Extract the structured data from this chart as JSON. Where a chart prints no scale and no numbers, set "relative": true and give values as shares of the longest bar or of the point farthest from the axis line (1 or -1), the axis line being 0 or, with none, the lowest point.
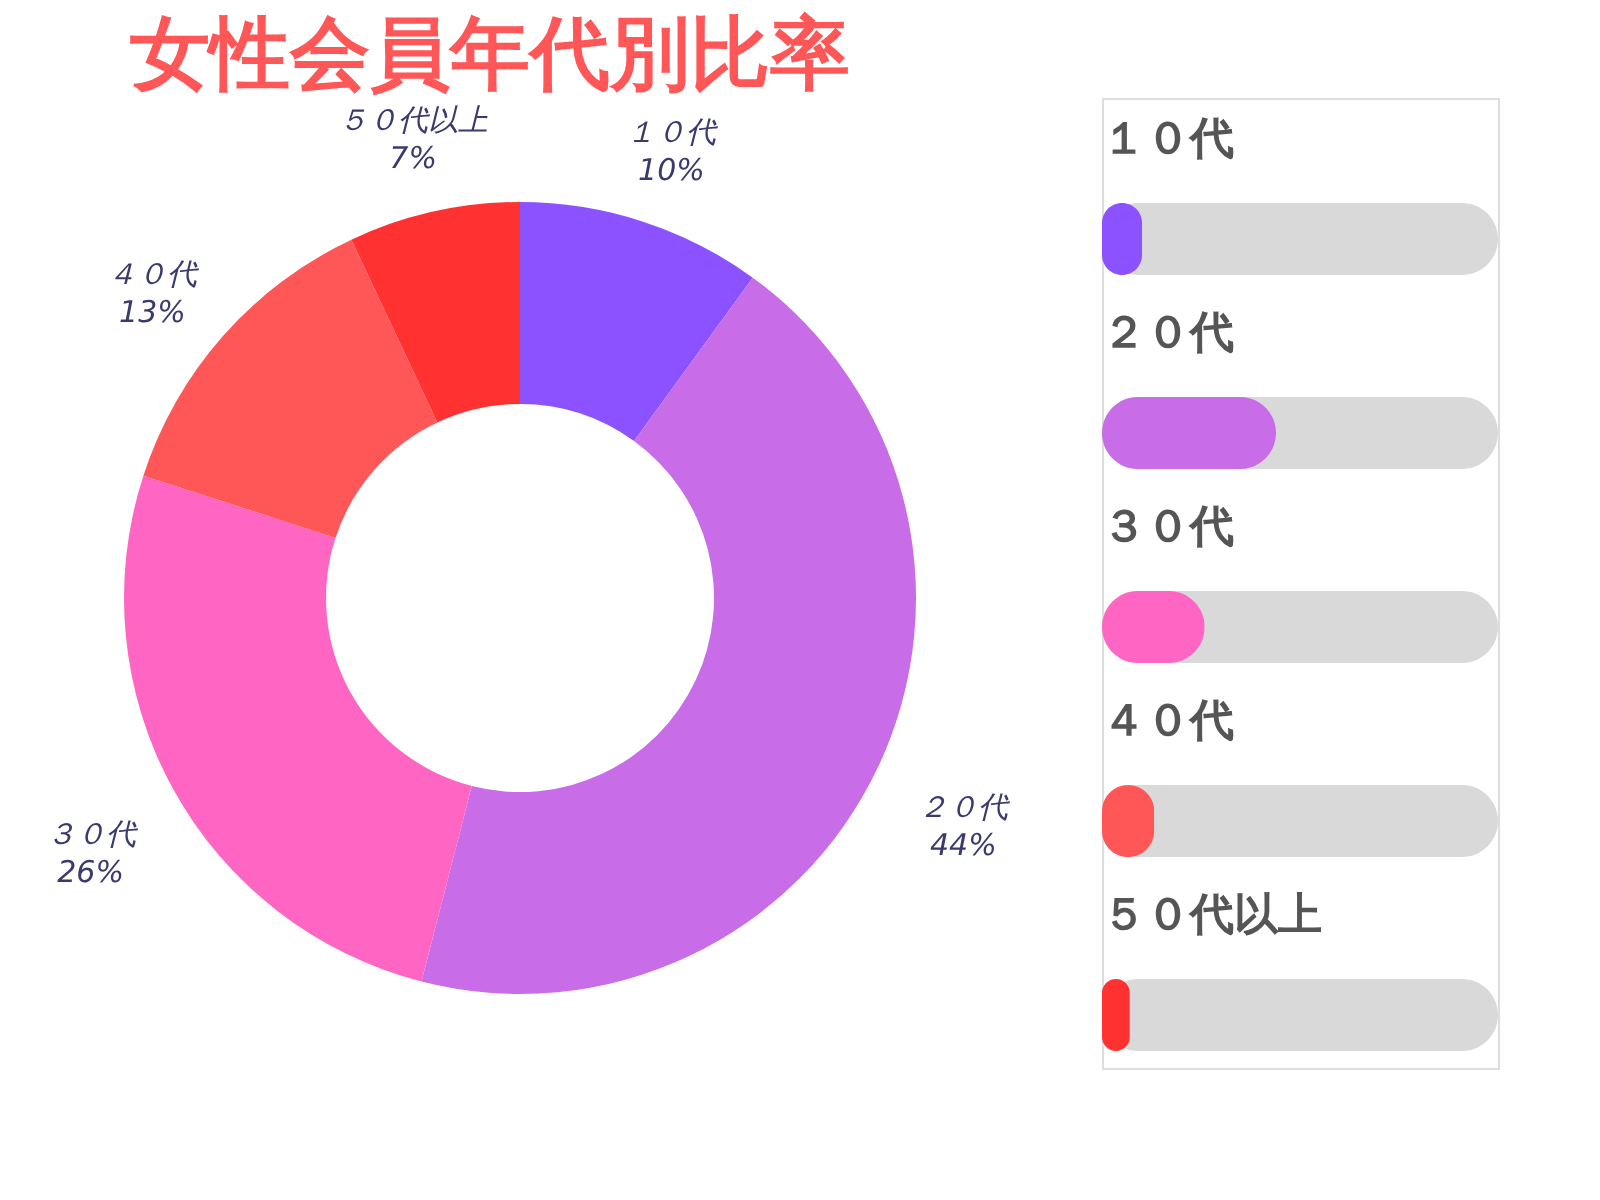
{
  "chart_data": [
    {
      "type": "donut",
      "title": "女性会員年代別比率",
      "categories": [
        "１０代",
        "２０代",
        "３０代",
        "４０代",
        "５０代以上"
      ],
      "values": [
        10,
        44,
        26,
        13,
        7
      ],
      "value_labels": [
        "10%",
        "44%",
        "26%",
        "13%",
        "7%"
      ],
      "colors": [
        "#8c52ff",
        "#c86ce8",
        "#ff66c4",
        "#ff5757",
        "#ff3131"
      ],
      "legend": false
    },
    {
      "type": "bar",
      "orientation": "horizontal",
      "relative": true,
      "categories": [
        "１０代",
        "２０代",
        "３０代",
        "４０代",
        "５０代以上"
      ],
      "values": [
        0.23,
        1,
        0.59,
        0.3,
        0.16
      ],
      "colors": [
        "#8c52ff",
        "#c86ce8",
        "#ff66c4",
        "#ff5757",
        "#ff3131"
      ],
      "tick_labels": "y"
    }
  ]
}
